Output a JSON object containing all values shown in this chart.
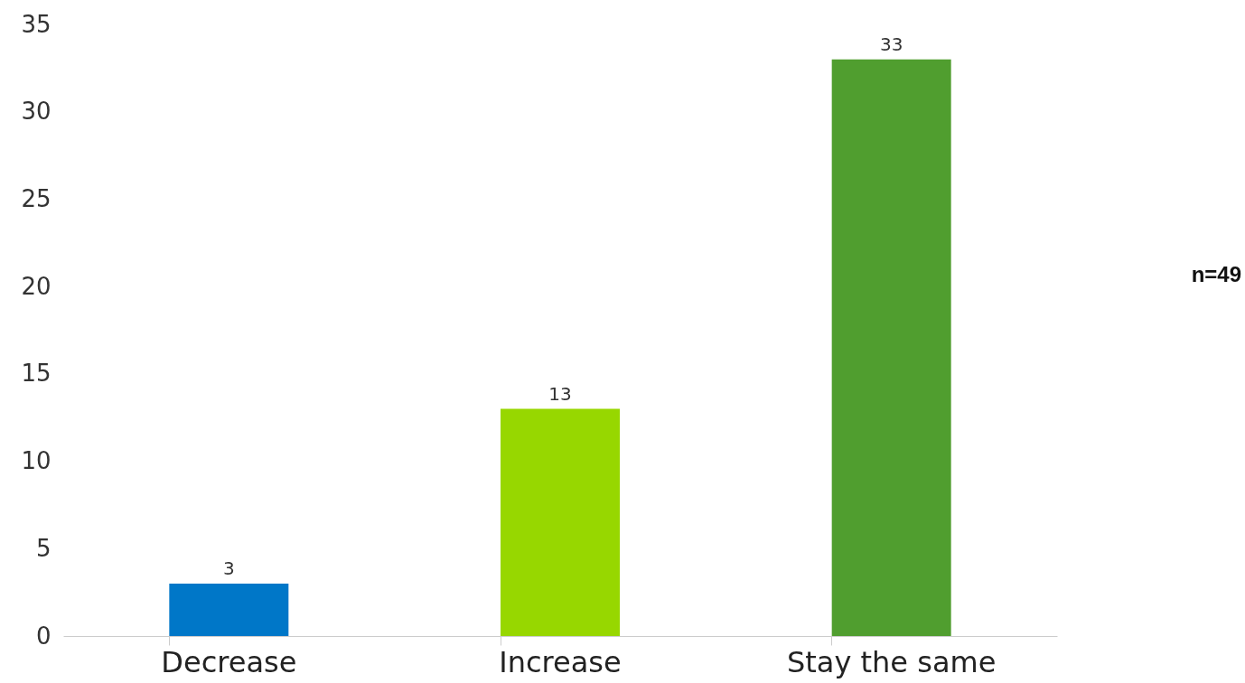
{
  "chart_data": {
    "type": "bar",
    "categories": [
      "Decrease",
      "Increase",
      "Stay the same"
    ],
    "values": [
      3,
      13,
      33
    ],
    "colors": [
      "#0077c8",
      "#97d700",
      "#509e2f"
    ],
    "ylim": [
      0,
      35
    ],
    "yticks": [
      0,
      5,
      10,
      15,
      20,
      25,
      30,
      35
    ],
    "grid": false,
    "data_labels": true,
    "annotations": [
      "n=49"
    ]
  }
}
